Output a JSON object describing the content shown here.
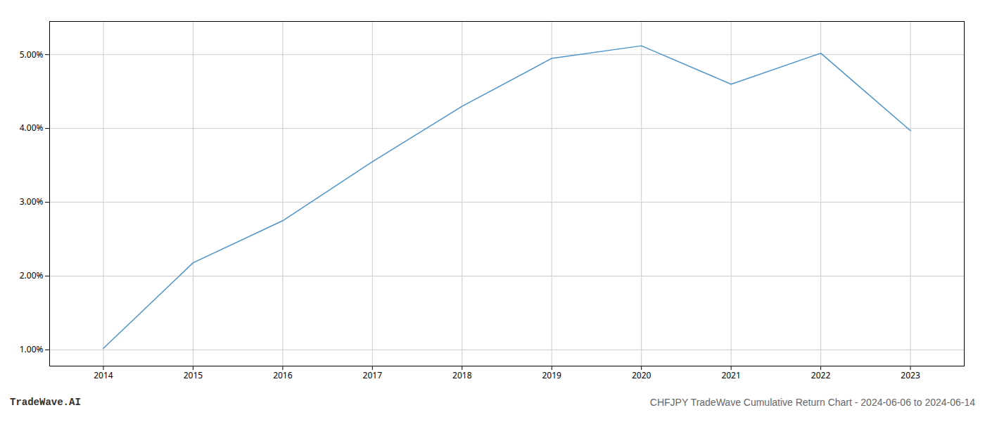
{
  "chart_data": {
    "type": "line",
    "title": "CHFJPY TradeWave Cumulative Return Chart - 2024-06-06 to 2024-06-14",
    "annotations": [
      "TradeWave.AI"
    ],
    "x": [
      2014,
      2015,
      2016,
      2017,
      2018,
      2019,
      2020,
      2021,
      2022,
      2023
    ],
    "values": [
      1.02,
      2.18,
      2.75,
      3.55,
      4.3,
      4.95,
      5.12,
      4.6,
      5.02,
      3.97
    ],
    "color": "#4d94c8",
    "xlim": [
      2013.4,
      2023.6
    ],
    "xticks": [
      2014,
      2015,
      2016,
      2017,
      2018,
      2019,
      2020,
      2021,
      2022,
      2023
    ],
    "ylim": [
      0.78,
      5.45
    ],
    "yticks": [
      {
        "value": 1.0,
        "label": "1.00%"
      },
      {
        "value": 2.0,
        "label": "2.00%"
      },
      {
        "value": 3.0,
        "label": "3.00%"
      },
      {
        "value": 4.0,
        "label": "4.00%"
      },
      {
        "value": 5.0,
        "label": "5.00%"
      }
    ],
    "grid": true
  }
}
